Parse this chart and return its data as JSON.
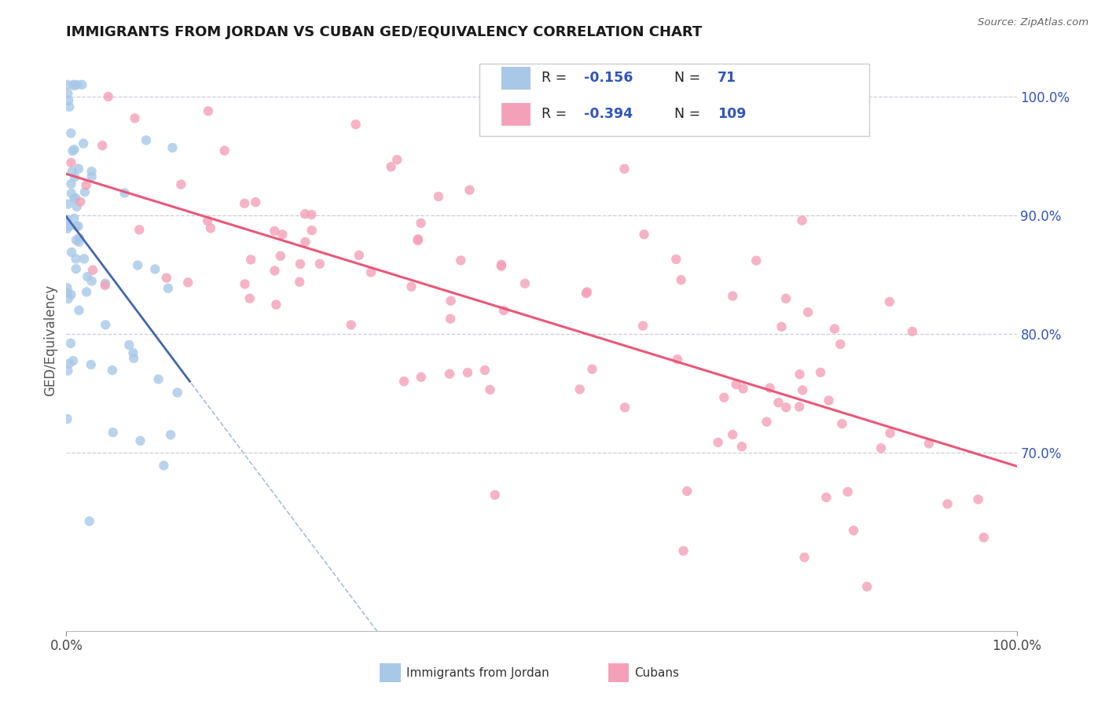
{
  "title": "IMMIGRANTS FROM JORDAN VS CUBAN GED/EQUIVALENCY CORRELATION CHART",
  "source": "Source: ZipAtlas.com",
  "ylabel": "GED/Equivalency",
  "legend_label1": "Immigrants from Jordan",
  "legend_label2": "Cubans",
  "legend_R1": "-0.156",
  "legend_N1": "71",
  "legend_R2": "-0.394",
  "legend_N2": "109",
  "color_jordan": "#a8c8e8",
  "color_cuban": "#f4a0b8",
  "color_jordan_line": "#4466aa",
  "color_cuban_line": "#e85878",
  "color_dashed": "#aabbdd",
  "color_RN_value": "#3355bb",
  "background": "#ffffff",
  "grid_color": "#ccccdd",
  "yticks": [
    0.7,
    0.8,
    0.9,
    1.0
  ],
  "ytick_labels": [
    "70.0%",
    "80.0%",
    "90.0%",
    "100.0%"
  ],
  "xlim": [
    0.0,
    1.0
  ],
  "ylim": [
    0.55,
    1.04
  ]
}
